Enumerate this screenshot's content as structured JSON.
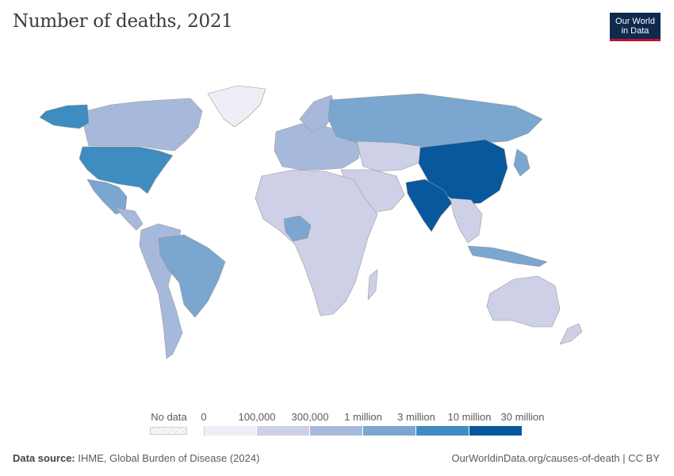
{
  "title": "Number of deaths, 2021",
  "logo": {
    "line1": "Our World",
    "line2": "in Data"
  },
  "legend": {
    "no_data_label": "No data",
    "tick_labels": [
      "0",
      "100,000",
      "300,000",
      "1 million",
      "3 million",
      "10 million",
      "30 million"
    ],
    "colors": [
      "#efedf5",
      "#cdd0e6",
      "#a7b9da",
      "#7aa6cf",
      "#3e8cc0",
      "#08589e"
    ],
    "no_data_pattern": "hatched-gray"
  },
  "footer": {
    "source_label": "Data source:",
    "source_text": "IHME, Global Burden of Disease (2024)",
    "url": "OurWorldinData.org/causes-of-death | CC BY"
  },
  "regions": [
    {
      "name": "North America (Canada)",
      "color": "#a7b9da"
    },
    {
      "name": "Alaska",
      "color": "#3e8cc0"
    },
    {
      "name": "United States",
      "color": "#3e8cc0"
    },
    {
      "name": "Mexico",
      "color": "#7aa6cf"
    },
    {
      "name": "Greenland",
      "color": "#efedf5"
    },
    {
      "name": "Brazil",
      "color": "#7aa6cf"
    },
    {
      "name": "South America (other)",
      "color": "#a7b9da"
    },
    {
      "name": "Russia",
      "color": "#7aa6cf"
    },
    {
      "name": "China",
      "color": "#08589e"
    },
    {
      "name": "India",
      "color": "#08589e"
    },
    {
      "name": "Nigeria",
      "color": "#7aa6cf"
    },
    {
      "name": "Africa (other)",
      "color": "#cdd0e6"
    },
    {
      "name": "Australia",
      "color": "#cdd0e6"
    },
    {
      "name": "Indonesia",
      "color": "#7aa6cf"
    },
    {
      "name": "Europe",
      "color": "#a7b9da"
    }
  ]
}
